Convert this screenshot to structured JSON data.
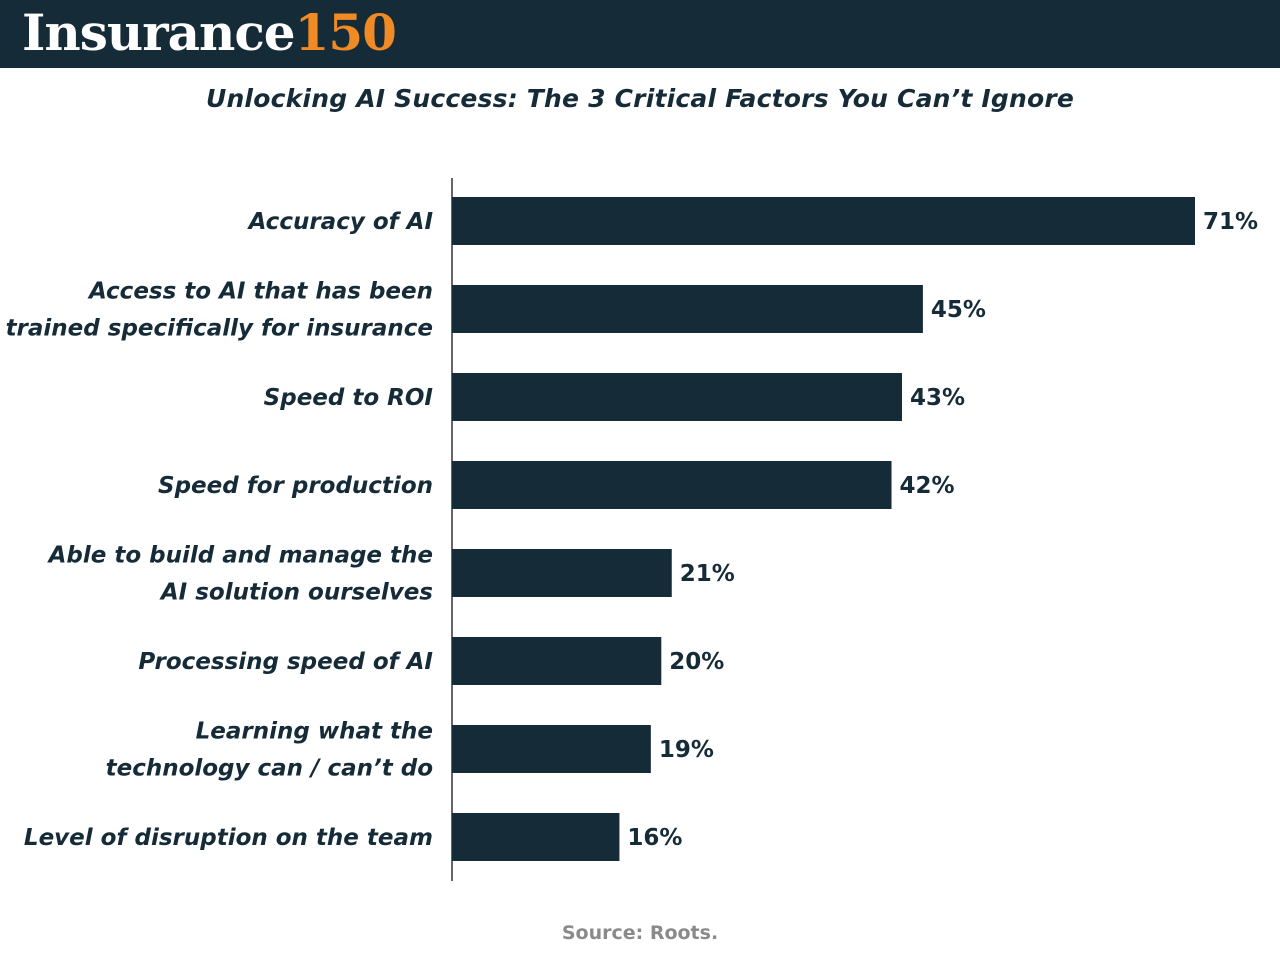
{
  "header": {
    "logo_word": "Insurance",
    "logo_number": "150",
    "logo_word_color": "#ffffff",
    "logo_number_color": "#f08a24",
    "background_color": "#152b38"
  },
  "chart_data": {
    "type": "bar",
    "orientation": "horizontal",
    "title": "Unlocking AI Success: The 3 Critical Factors You Can’t Ignore",
    "categories": [
      [
        "Accuracy of AI"
      ],
      [
        "Access to AI that has been",
        "trained specifically for insurance"
      ],
      [
        "Speed to ROI"
      ],
      [
        "Speed for production"
      ],
      [
        "Able to build and manage the",
        "AI solution ourselves"
      ],
      [
        "Processing speed of AI"
      ],
      [
        "Learning what the",
        "technology can / can’t do"
      ],
      [
        "Level of disruption on the team"
      ]
    ],
    "values": [
      71,
      45,
      43,
      42,
      21,
      20,
      19,
      16
    ],
    "value_labels": [
      "71%",
      "45%",
      "43%",
      "42%",
      "21%",
      "20%",
      "19%",
      "16%"
    ],
    "unit": "%",
    "xlim": [
      0,
      71
    ],
    "bar_color": "#152b38",
    "label_color": "#152b38",
    "grid": false,
    "legend": "none"
  },
  "footer": {
    "source": "Source: Roots."
  }
}
